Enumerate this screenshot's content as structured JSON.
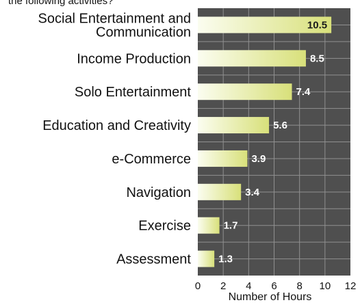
{
  "header": {
    "partial_text": "the following activities?"
  },
  "colors": {
    "plot_bg": "#4f4f4f",
    "grid": "#909090",
    "bar_light": "#fbfdf0",
    "bar_dark": "#d8e07a",
    "label_on_light": "#1a1a1a",
    "label_on_dark": "#ffffff"
  },
  "chart_data": {
    "type": "bar",
    "orientation": "horizontal",
    "categories": [
      [
        "Social Entertainment and",
        "Communication"
      ],
      [
        "Income Production"
      ],
      [
        "Solo Entertainment"
      ],
      [
        "Education and Creativity"
      ],
      [
        "e-Commerce"
      ],
      [
        "Navigation"
      ],
      [
        "Exercise"
      ],
      [
        "Assessment"
      ]
    ],
    "values": [
      10.5,
      8.5,
      7.4,
      5.6,
      3.9,
      3.4,
      1.7,
      1.3
    ],
    "value_labels": [
      "10.5",
      "8.5",
      "7.4",
      "5.6",
      "3.9",
      "3.4",
      "1.7",
      "1.3"
    ],
    "xlabel": "Number of Hours",
    "xlim": [
      0,
      12
    ],
    "xticks": [
      "0",
      "2",
      "4",
      "6",
      "8",
      "10",
      "12"
    ],
    "grid": true
  }
}
